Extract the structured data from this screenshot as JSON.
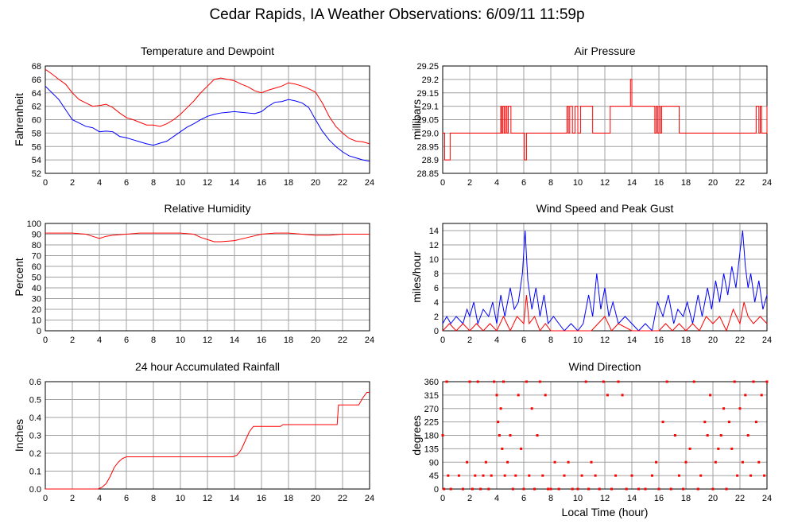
{
  "page": {
    "title": "Cedar Rapids, IA Weather Observations: 6/09/11 11:59p",
    "x_axis_label": "Local Time (hour)"
  },
  "colors": {
    "red": "#ff0000",
    "blue": "#0000ff",
    "grid": "#a0a0a0"
  },
  "chart_data": [
    {
      "id": "temp",
      "type": "line",
      "title": "Temperature and Dewpoint",
      "ylabel": "Fahrenheit",
      "xlim": [
        0,
        24
      ],
      "ylim": [
        52,
        68
      ],
      "xticks": [
        0,
        2,
        4,
        6,
        8,
        10,
        12,
        14,
        16,
        18,
        20,
        22,
        24
      ],
      "yticks": [
        52,
        54,
        56,
        58,
        60,
        62,
        64,
        66,
        68
      ],
      "grid": true,
      "series": [
        {
          "color": "#ff0000",
          "x": [
            0,
            0.5,
            1,
            1.5,
            2,
            2.5,
            3,
            3.5,
            4,
            4.5,
            5,
            5.5,
            6,
            6.5,
            7,
            7.5,
            8,
            8.5,
            9,
            9.5,
            10,
            10.5,
            11,
            11.5,
            12,
            12.5,
            13,
            13.5,
            14,
            14.5,
            15,
            15.5,
            16,
            16.5,
            17,
            17.5,
            18,
            18.5,
            19,
            19.5,
            20,
            20.5,
            21,
            21.5,
            22,
            22.5,
            23,
            23.5,
            24
          ],
          "y": [
            67.5,
            66.8,
            66.0,
            65.3,
            64.0,
            63.0,
            62.5,
            62.0,
            62.1,
            62.3,
            61.8,
            61.0,
            60.3,
            60.0,
            59.6,
            59.2,
            59.2,
            59.0,
            59.4,
            60.0,
            60.8,
            61.8,
            62.8,
            64.0,
            65.0,
            66.0,
            66.2,
            66.0,
            65.8,
            65.3,
            64.9,
            64.3,
            64.0,
            64.4,
            64.7,
            65.0,
            65.5,
            65.3,
            65.0,
            64.6,
            64.1,
            62.5,
            60.5,
            59.0,
            58.0,
            57.2,
            56.8,
            56.7,
            56.4
          ]
        },
        {
          "color": "#0000ff",
          "x": [
            0,
            0.5,
            1,
            1.5,
            2,
            2.5,
            3,
            3.5,
            4,
            4.5,
            5,
            5.5,
            6,
            6.5,
            7,
            7.5,
            8,
            8.5,
            9,
            9.5,
            10,
            10.5,
            11,
            11.5,
            12,
            12.5,
            13,
            13.5,
            14,
            14.5,
            15,
            15.5,
            16,
            16.5,
            17,
            17.5,
            18,
            18.5,
            19,
            19.5,
            20,
            20.5,
            21,
            21.5,
            22,
            22.5,
            23,
            23.5,
            24
          ],
          "y": [
            65.0,
            64.0,
            63.0,
            61.5,
            60.0,
            59.5,
            59.0,
            58.8,
            58.2,
            58.3,
            58.2,
            57.5,
            57.3,
            57.0,
            56.7,
            56.4,
            56.2,
            56.5,
            56.8,
            57.5,
            58.2,
            58.9,
            59.4,
            60.0,
            60.5,
            60.8,
            61.0,
            61.1,
            61.2,
            61.1,
            61.0,
            60.9,
            61.2,
            62.0,
            62.6,
            62.7,
            63.0,
            62.8,
            62.5,
            61.8,
            60.0,
            58.3,
            57.0,
            56.0,
            55.2,
            54.6,
            54.3,
            54.0,
            53.8
          ]
        }
      ]
    },
    {
      "id": "pressure",
      "type": "line",
      "title": "Air Pressure",
      "ylabel": "millibars",
      "xlim": [
        0,
        24
      ],
      "ylim": [
        28.85,
        29.25
      ],
      "xticks": [
        0,
        2,
        4,
        6,
        8,
        10,
        12,
        14,
        16,
        18,
        20,
        22,
        24
      ],
      "yticks": [
        28.85,
        28.9,
        28.95,
        29.0,
        29.05,
        29.1,
        29.15,
        29.2,
        29.25
      ],
      "ytick_labels": [
        "28.85",
        "28.9",
        "28.95",
        "29.0",
        "29.05",
        "29.1",
        "29.15",
        "29.2",
        "29.25"
      ],
      "grid": true,
      "series": [
        {
          "color": "#ff0000",
          "step": true,
          "x": [
            0,
            0.15,
            0.55,
            4.3,
            4.35,
            4.45,
            4.55,
            4.65,
            4.75,
            4.85,
            5.05,
            6.05,
            6.2,
            9.2,
            9.3,
            9.4,
            9.6,
            9.8,
            10.0,
            10.2,
            11.1,
            12.4,
            13.9,
            14.0,
            15.7,
            15.8,
            15.9,
            16.0,
            16.1,
            16.2,
            17.5,
            23.2,
            23.4,
            23.5,
            23.6,
            24
          ],
          "y": [
            29.0,
            28.9,
            29.0,
            29.1,
            29.0,
            29.1,
            29.0,
            29.1,
            29.0,
            29.1,
            29.0,
            28.9,
            29.0,
            29.1,
            29.0,
            29.1,
            29.0,
            29.1,
            29.0,
            29.1,
            29.0,
            29.1,
            29.2,
            29.1,
            29.0,
            29.1,
            29.0,
            29.1,
            29.0,
            29.1,
            29.0,
            29.1,
            29.0,
            29.1,
            29.0,
            29.1
          ]
        }
      ]
    },
    {
      "id": "humidity",
      "type": "line",
      "title": "Relative Humidity",
      "ylabel": "Percent",
      "xlim": [
        0,
        24
      ],
      "ylim": [
        0,
        100
      ],
      "xticks": [
        0,
        2,
        4,
        6,
        8,
        10,
        12,
        14,
        16,
        18,
        20,
        22,
        24
      ],
      "yticks": [
        0,
        10,
        20,
        30,
        40,
        50,
        60,
        70,
        80,
        90,
        100
      ],
      "grid": true,
      "series": [
        {
          "color": "#ff0000",
          "x": [
            0,
            1,
            2,
            3,
            3.5,
            4,
            4.5,
            5,
            6,
            7,
            8,
            9,
            10,
            11,
            11.5,
            12,
            12.5,
            13,
            14,
            15,
            16,
            17,
            18,
            19,
            20,
            21,
            22,
            23,
            24
          ],
          "y": [
            91,
            91,
            91,
            90,
            88,
            86,
            88,
            89,
            90,
            91,
            91,
            91,
            91,
            90,
            87,
            85,
            83,
            83,
            84,
            87,
            90,
            91,
            91,
            90,
            89,
            89,
            90,
            90,
            90
          ]
        }
      ]
    },
    {
      "id": "wind",
      "type": "line",
      "title": "Wind Speed and Peak Gust",
      "ylabel": "miles/hour",
      "xlim": [
        0,
        24
      ],
      "ylim": [
        0,
        15
      ],
      "xticks": [
        0,
        2,
        4,
        6,
        8,
        10,
        12,
        14,
        16,
        18,
        20,
        22,
        24
      ],
      "yticks": [
        0,
        2,
        4,
        6,
        8,
        10,
        12,
        14
      ],
      "grid": true,
      "series": [
        {
          "color": "#0000ff",
          "x": [
            0,
            0.3,
            0.6,
            1.0,
            1.5,
            1.8,
            2.0,
            2.3,
            2.6,
            3.0,
            3.4,
            3.7,
            4.0,
            4.3,
            4.6,
            5.0,
            5.3,
            5.6,
            5.9,
            6.1,
            6.3,
            6.6,
            6.9,
            7.2,
            7.5,
            7.8,
            8.2,
            8.6,
            9.0,
            9.5,
            10.0,
            10.4,
            10.8,
            11.1,
            11.4,
            11.7,
            12.0,
            12.3,
            12.6,
            13.0,
            13.5,
            14.0,
            14.5,
            15.0,
            15.5,
            15.9,
            16.3,
            16.7,
            17.1,
            17.4,
            17.8,
            18.1,
            18.5,
            18.9,
            19.2,
            19.6,
            19.9,
            20.2,
            20.5,
            20.8,
            21.1,
            21.4,
            21.7,
            22.0,
            22.2,
            22.4,
            22.6,
            22.8,
            23.1,
            23.4,
            23.7,
            24.0
          ],
          "y": [
            1,
            2,
            1,
            2,
            1,
            3,
            2,
            4,
            1,
            3,
            2,
            4,
            1,
            5,
            2,
            6,
            3,
            4,
            8,
            14,
            7,
            3,
            6,
            2,
            5,
            1,
            2,
            1,
            0,
            1,
            0,
            1,
            5,
            2,
            8,
            3,
            6,
            2,
            4,
            1,
            2,
            1,
            0,
            1,
            0,
            4,
            2,
            5,
            1,
            3,
            2,
            4,
            1,
            5,
            2,
            6,
            3,
            7,
            4,
            8,
            5,
            9,
            6,
            11,
            14,
            9,
            6,
            8,
            4,
            7,
            3,
            5
          ]
        },
        {
          "color": "#ff0000",
          "x": [
            0,
            0.5,
            1.0,
            1.5,
            2.0,
            2.5,
            3.0,
            3.5,
            4.0,
            4.5,
            5.0,
            5.5,
            6.0,
            6.2,
            6.4,
            6.8,
            7.2,
            7.6,
            8.0,
            9.0,
            10.0,
            11.0,
            11.5,
            12.0,
            12.5,
            13.0,
            14.0,
            15.0,
            16.0,
            16.5,
            17.0,
            17.5,
            18.0,
            18.5,
            19.0,
            19.5,
            20.0,
            20.5,
            21.0,
            21.5,
            22.0,
            22.3,
            22.6,
            23.0,
            23.5,
            24.0
          ],
          "y": [
            0,
            1,
            0,
            1,
            0,
            1,
            0,
            1,
            0,
            2,
            0,
            2,
            1,
            5,
            1,
            2,
            0,
            1,
            0,
            0,
            0,
            0,
            1,
            2,
            0,
            1,
            0,
            0,
            0,
            1,
            0,
            1,
            0,
            1,
            0,
            2,
            1,
            2,
            0,
            3,
            1,
            4,
            2,
            1,
            2,
            1
          ]
        }
      ]
    },
    {
      "id": "rain",
      "type": "line",
      "title": "24 hour Accumulated Rainfall",
      "ylabel": "Inches",
      "xlim": [
        0,
        24
      ],
      "ylim": [
        0,
        0.6
      ],
      "xticks": [
        0,
        2,
        4,
        6,
        8,
        10,
        12,
        14,
        16,
        18,
        20,
        22,
        24
      ],
      "yticks": [
        0,
        0.1,
        0.2,
        0.3,
        0.4,
        0.5,
        0.6
      ],
      "ytick_labels": [
        "0.0",
        "0.1",
        "0.2",
        "0.3",
        "0.4",
        "0.5",
        "0.6"
      ],
      "grid": true,
      "series": [
        {
          "color": "#ff0000",
          "x": [
            0,
            3.9,
            4.2,
            4.5,
            4.8,
            5.1,
            5.4,
            5.7,
            6.0,
            13.9,
            14.2,
            14.5,
            14.8,
            15.1,
            15.4,
            17.4,
            17.6,
            21.6,
            21.7,
            23.2,
            23.5,
            23.8,
            24.0
          ],
          "y": [
            0,
            0,
            0.01,
            0.03,
            0.07,
            0.12,
            0.15,
            0.17,
            0.18,
            0.18,
            0.19,
            0.22,
            0.27,
            0.32,
            0.35,
            0.35,
            0.36,
            0.36,
            0.47,
            0.47,
            0.51,
            0.54,
            0.54
          ]
        }
      ]
    },
    {
      "id": "direction",
      "type": "scatter",
      "title": "Wind Direction",
      "ylabel": "degrees",
      "xlabel": "Local Time (hour)",
      "xlim": [
        0,
        24
      ],
      "ylim": [
        0,
        360
      ],
      "xticks": [
        0,
        2,
        4,
        6,
        8,
        10,
        12,
        14,
        16,
        18,
        20,
        22,
        24
      ],
      "yticks": [
        0,
        45,
        90,
        135,
        180,
        225,
        270,
        315,
        360
      ],
      "grid": true,
      "series": [
        {
          "color": "#ff0000",
          "x": [
            0.0,
            0.1,
            0.3,
            0.4,
            0.6,
            1.2,
            1.5,
            1.8,
            2.0,
            2.2,
            2.4,
            2.6,
            2.8,
            3.0,
            3.2,
            3.4,
            3.6,
            3.8,
            4.0,
            4.1,
            4.2,
            4.3,
            4.4,
            4.5,
            4.6,
            4.8,
            5.0,
            5.2,
            5.4,
            5.6,
            5.8,
            6.0,
            6.2,
            6.4,
            6.6,
            6.8,
            7.0,
            7.2,
            7.4,
            7.6,
            7.8,
            8.0,
            8.3,
            8.6,
            9.0,
            9.3,
            9.6,
            10.0,
            10.3,
            10.6,
            10.8,
            11.0,
            11.3,
            11.6,
            11.9,
            12.2,
            12.5,
            12.8,
            13.0,
            13.3,
            13.6,
            14.0,
            14.5,
            15.0,
            15.5,
            15.8,
            16.0,
            16.3,
            16.6,
            16.9,
            17.2,
            17.5,
            17.8,
            18.0,
            18.3,
            18.6,
            18.9,
            19.1,
            19.4,
            19.6,
            19.8,
            20.0,
            20.2,
            20.4,
            20.6,
            20.8,
            21.0,
            21.2,
            21.4,
            21.6,
            21.8,
            22.0,
            22.2,
            22.4,
            22.6,
            22.8,
            23.0,
            23.2,
            23.4,
            23.6,
            23.8,
            24.0
          ],
          "y": [
            180,
            0,
            360,
            45,
            0,
            45,
            0,
            90,
            360,
            0,
            45,
            360,
            0,
            45,
            90,
            0,
            45,
            360,
            315,
            225,
            180,
            270,
            135,
            360,
            45,
            90,
            180,
            0,
            45,
            315,
            135,
            0,
            360,
            45,
            270,
            0,
            180,
            360,
            45,
            315,
            0,
            0,
            90,
            0,
            45,
            90,
            0,
            0,
            45,
            360,
            0,
            90,
            45,
            0,
            360,
            315,
            0,
            45,
            360,
            315,
            0,
            45,
            0,
            0,
            45,
            90,
            0,
            225,
            360,
            0,
            180,
            45,
            0,
            90,
            135,
            360,
            0,
            45,
            225,
            180,
            315,
            0,
            90,
            135,
            180,
            270,
            0,
            225,
            135,
            360,
            45,
            270,
            90,
            315,
            180,
            45,
            360,
            225,
            90,
            315,
            45,
            360
          ]
        }
      ]
    }
  ]
}
